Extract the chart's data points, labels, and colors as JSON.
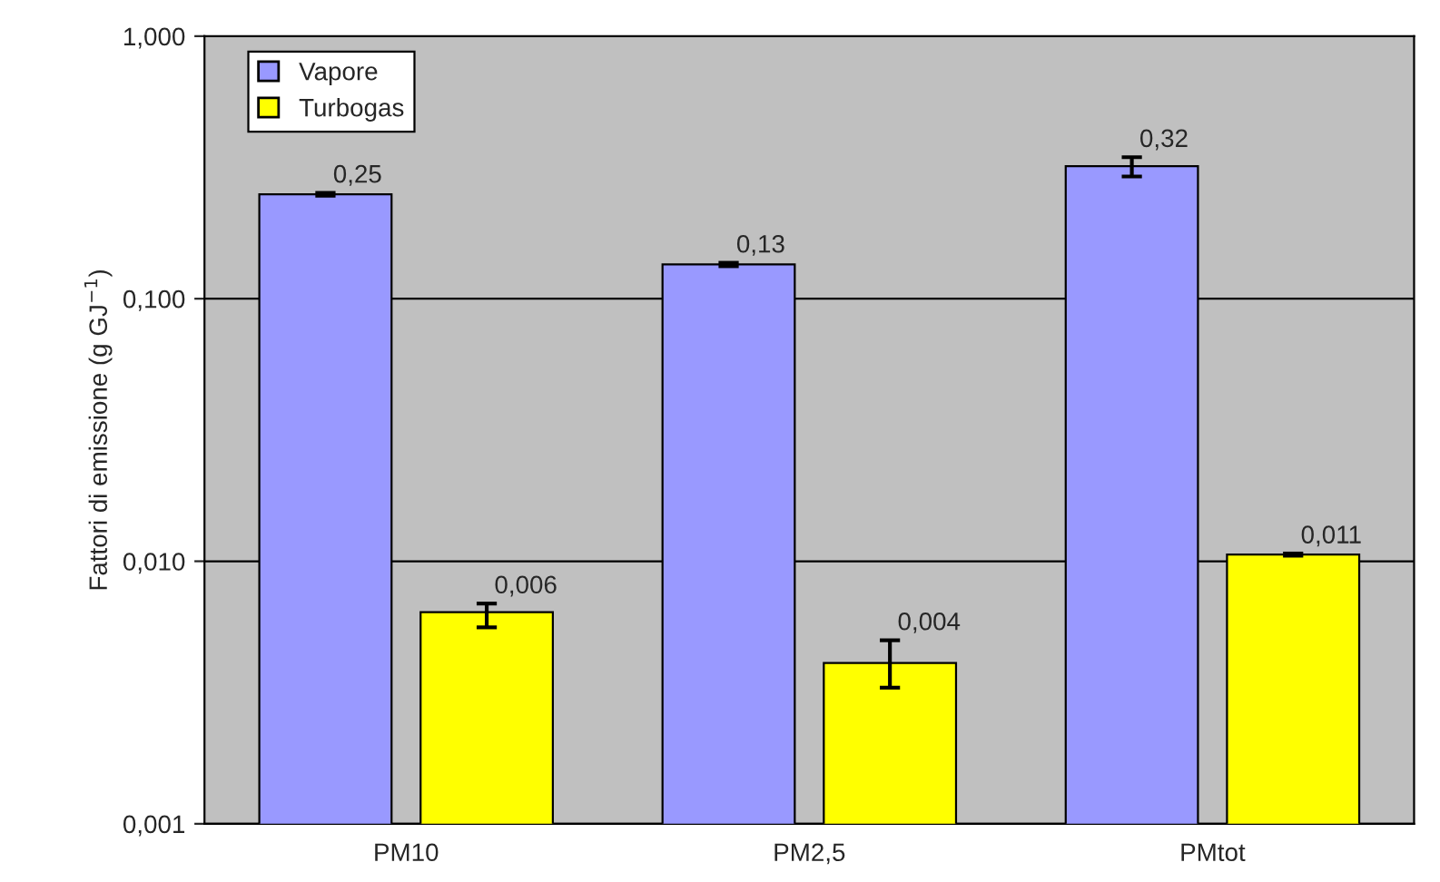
{
  "chart_data": {
    "type": "bar",
    "ylabel": "Fattori di emissione (g GJ$^{−1}$)",
    "categories": [
      "PM10",
      "PM2,5",
      "PMtot"
    ],
    "series": [
      {
        "name": "Vapore",
        "color": "#9999ff",
        "values": [
          0.25,
          0.135,
          0.32
        ],
        "errors": [
          [
            0.247,
            0.253
          ],
          [
            0.133,
            0.137
          ],
          [
            0.292,
            0.346
          ]
        ],
        "value_labels": [
          "0,25",
          "0,13",
          "0,32"
        ]
      },
      {
        "name": "Turbogas",
        "color": "#ffff00",
        "values": [
          0.0064,
          0.0041,
          0.0106
        ],
        "errors": [
          [
            0.0056,
            0.0069
          ],
          [
            0.0033,
            0.005
          ],
          [
            0.0105,
            0.0107
          ]
        ],
        "value_labels": [
          "0,006",
          "0,004",
          "0,011"
        ]
      }
    ],
    "log": "y",
    "ylim": [
      0.001,
      1
    ],
    "yticks": [
      {
        "value": 0.001,
        "label": "0,001"
      },
      {
        "value": 0.01,
        "label": "0,010"
      },
      {
        "value": 0.1,
        "label": "0,100"
      },
      {
        "value": 1,
        "label": "1,000"
      }
    ],
    "grid": "y",
    "legend": "top left"
  }
}
